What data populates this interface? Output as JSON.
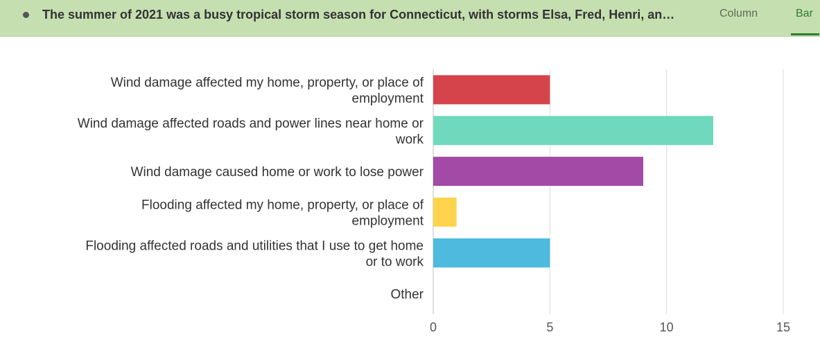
{
  "header": {
    "question": "The summer of 2021 was a busy tropical storm season for Connecticut, with storms Elsa, Fred, Henri, an…",
    "tabs": [
      {
        "label": "Column",
        "active": false
      },
      {
        "label": "Bar",
        "active": true
      }
    ]
  },
  "colors": {
    "header_bg": "#c5dfb0",
    "active_tab": "#2d7d2d",
    "grid": "#d9d9d9"
  },
  "chart_data": {
    "type": "bar",
    "orientation": "horizontal",
    "title": "",
    "xlabel": "",
    "ylabel": "",
    "xlim": [
      0,
      15
    ],
    "xticks": [
      0,
      5,
      10,
      15
    ],
    "grid": true,
    "categories": [
      "Wind damage affected my home, property, or place of employment",
      "Wind damage affected roads and power lines near home or work",
      "Wind damage caused home or work to lose power",
      "Flooding affected my home, property, or place of employment",
      "Flooding affected roads and utilities that I use to get home or to work",
      "Other"
    ],
    "label_lines": [
      [
        "Wind damage affected my home, property, or place of",
        "employment"
      ],
      [
        "Wind damage affected roads and power lines near home or",
        "work"
      ],
      [
        "Wind damage caused home or work to lose power"
      ],
      [
        "Flooding affected my home, property, or place of",
        "employment"
      ],
      [
        "Flooding affected roads and utilities that I use to get home",
        "or to work"
      ],
      [
        "Other"
      ]
    ],
    "values": [
      5,
      12,
      9,
      1,
      5,
      0
    ],
    "bar_colors": [
      "#d6444b",
      "#6fd8bd",
      "#a24aa6",
      "#fdd44b",
      "#4dbade",
      "#cccccc"
    ]
  }
}
